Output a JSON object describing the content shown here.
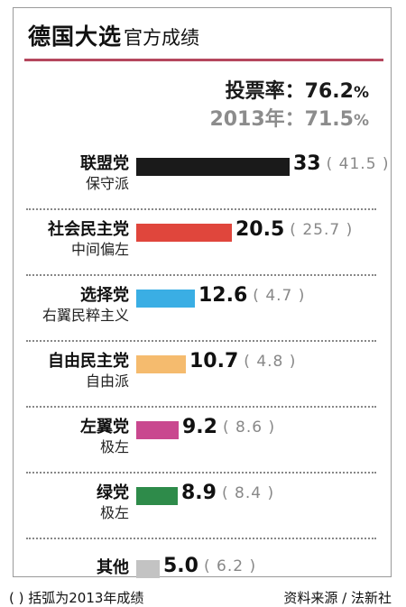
{
  "header": {
    "title_bold": "德国大选",
    "title_light": "官方成绩"
  },
  "turnout": {
    "current_label": "投票率：",
    "current_value": "76.2",
    "current_unit": "%",
    "previous_label": "2013年：",
    "previous_value": "71.5",
    "previous_unit": "%"
  },
  "chart_data": {
    "type": "bar",
    "orientation": "horizontal",
    "categories": [
      "联盟党",
      "社会民主党",
      "选择党",
      "自由民主党",
      "左翼党",
      "绿党",
      "其他"
    ],
    "subtitles": [
      "保守派",
      "中间偏左",
      "右翼民粹主义",
      "自由派",
      "极左",
      "极左",
      ""
    ],
    "series": [
      {
        "values": [
          33,
          20.5,
          12.6,
          10.7,
          9.2,
          8.9,
          5.0
        ]
      }
    ],
    "value_labels": [
      "33",
      "20.5",
      "12.6",
      "10.7",
      "9.2",
      "8.9",
      "5.0"
    ],
    "previous_labels": [
      "( 41.5 )",
      "( 25.7 )",
      "( 4.7 )",
      "( 4.8 )",
      "( 8.6 )",
      "( 8.4 )",
      "( 6.2 )"
    ],
    "colors": [
      "#1a1a1a",
      "#e0463c",
      "#3aaee4",
      "#f5bb6e",
      "#c9488f",
      "#2e8b4a",
      "#c3c3c3"
    ],
    "xlim": [
      0,
      33
    ],
    "grid": false,
    "legend": "none"
  },
  "footer": {
    "note": "(   ) 括弧为2013年成绩",
    "source": "资料来源 / 法新社"
  }
}
